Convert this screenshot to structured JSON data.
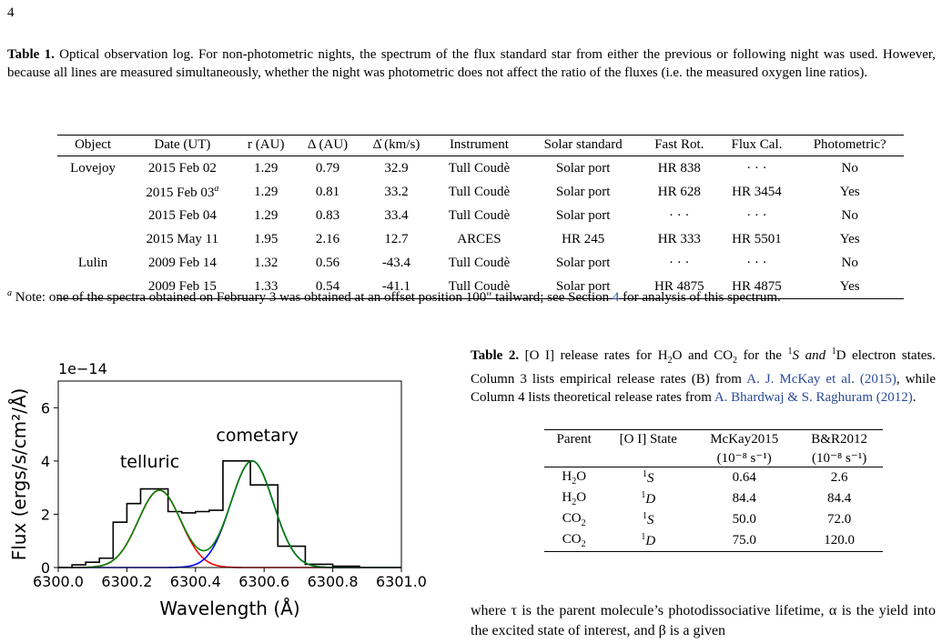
{
  "page_number": "4",
  "table1": {
    "label": "Table 1.",
    "caption": "Optical observation log. For non-photometric nights, the spectrum of the flux standard star from either the previous or following night was used. However, because all lines are measured simultaneously, whether the night was photometric does not affect the ratio of the fluxes (i.e. the measured oxygen line ratios).",
    "headers": [
      "Object",
      "Date (UT)",
      "r (AU)",
      "Δ (AU)",
      "Δ̇ (km/s)",
      "Instrument",
      "Solar standard",
      "Fast Rot.",
      "Flux Cal.",
      "Photometric?"
    ],
    "rows": [
      {
        "object": "Lovejoy",
        "date": "2015 Feb 02",
        "r": "1.29",
        "delta": "0.79",
        "deltadot": "32.9",
        "instrument": "Tull Coudè",
        "solar": "Solar port",
        "fast": "HR 838",
        "flux": "· · ·",
        "phot": "No"
      },
      {
        "object": "",
        "date": "2015 Feb 03",
        "note": "a",
        "r": "1.29",
        "delta": "0.81",
        "deltadot": "33.2",
        "instrument": "Tull Coudè",
        "solar": "Solar port",
        "fast": "HR 628",
        "flux": "HR 3454",
        "phot": "Yes"
      },
      {
        "object": "",
        "date": "2015 Feb 04",
        "r": "1.29",
        "delta": "0.83",
        "deltadot": "33.4",
        "instrument": "Tull Coudè",
        "solar": "Solar port",
        "fast": "· · ·",
        "flux": "· · ·",
        "phot": "No"
      },
      {
        "object": "",
        "date": "2015 May 11",
        "r": "1.95",
        "delta": "2.16",
        "deltadot": "12.7",
        "instrument": "ARCES",
        "solar": "HR 245",
        "fast": "HR 333",
        "flux": "HR 5501",
        "phot": "Yes"
      },
      {
        "object": "Lulin",
        "date": "2009 Feb 14",
        "r": "1.32",
        "delta": "0.56",
        "deltadot": "-43.4",
        "instrument": "Tull Coudè",
        "solar": "Solar port",
        "fast": "· · ·",
        "flux": "· · ·",
        "phot": "No"
      },
      {
        "object": "",
        "date": "2009 Feb 15",
        "r": "1.33",
        "delta": "0.54",
        "deltadot": "-41.1",
        "instrument": "Tull Coudè",
        "solar": "Solar port",
        "fast": "HR 4875",
        "flux": "HR 4875",
        "phot": "Yes"
      }
    ],
    "footnote_marker": "a",
    "footnote_before": " Note: one of the spectra obtained on February 3 was obtained at an offset position 100\" tailward; see Section ",
    "footnote_link": "4",
    "footnote_after": " for analysis of this spectrum."
  },
  "table2": {
    "label": "Table 2.",
    "caption_parts": {
      "a": " [O I] release rates for H",
      "b": "O and CO",
      "c": " for the ",
      "d": "S and ",
      "e": "D electron states. Column 3 lists empirical release rates (B) from ",
      "link1": "A. J. McKay et al. (2015)",
      "f": ", while Column 4 lists theoretical release rates from ",
      "link2": "A. Bhardwaj & S. Raghuram (2012)",
      "g": "."
    },
    "headers": [
      "Parent",
      "[O I] State",
      "McKay2015",
      "B&R2012"
    ],
    "units": [
      "",
      "",
      "(10⁻⁸ s⁻¹)",
      "(10⁻⁸ s⁻¹)"
    ],
    "rows": [
      {
        "parent": "H",
        "parent_sub": "2",
        "parent_end": "O",
        "state_sup": "1",
        "state": "S",
        "mckay": "0.64",
        "br": "2.6"
      },
      {
        "parent": "H",
        "parent_sub": "2",
        "parent_end": "O",
        "state_sup": "1",
        "state": "D",
        "mckay": "84.4",
        "br": "84.4"
      },
      {
        "parent": "CO",
        "parent_sub": "2",
        "parent_end": "",
        "state_sup": "1",
        "state": "S",
        "mckay": "50.0",
        "br": "72.0"
      },
      {
        "parent": "CO",
        "parent_sub": "2",
        "parent_end": "",
        "state_sup": "1",
        "state": "D",
        "mckay": "75.0",
        "br": "120.0"
      }
    ]
  },
  "body_text": "where τ is the parent molecule’s photodissociative lifetime, α is the yield into the excited state of interest, and β is a given",
  "chart_data": {
    "type": "line",
    "title": "",
    "xlabel": "Wavelength (Å)",
    "ylabel": "Flux (ergs/s/cm²/Å)",
    "offset_label": "1e−14",
    "xlim": [
      6300.0,
      6301.0
    ],
    "ylim": [
      0,
      7
    ],
    "x_ticks": [
      "6300.0",
      "6300.2",
      "6300.4",
      "6300.6",
      "6300.8",
      "6301.0"
    ],
    "y_ticks": [
      "0",
      "2",
      "4",
      "6"
    ],
    "annotations": [
      "telluric",
      "cometary"
    ],
    "grid": false,
    "series": [
      {
        "kind": "step",
        "color": "#000000",
        "x": [
          6300.0,
          6300.04,
          6300.08,
          6300.12,
          6300.16,
          6300.2,
          6300.24,
          6300.28,
          6300.32,
          6300.36,
          6300.4,
          6300.44,
          6300.48,
          6300.52,
          6300.56,
          6300.6,
          6300.64,
          6300.68,
          6300.72,
          6300.76,
          6300.8,
          6300.84
        ],
        "y": [
          0.0,
          0.1,
          0.2,
          0.35,
          1.7,
          2.4,
          2.95,
          2.95,
          2.1,
          2.05,
          2.1,
          2.15,
          4.0,
          4.0,
          3.1,
          3.1,
          0.8,
          0.8,
          0.12,
          0.12,
          0.05,
          0.05
        ]
      },
      {
        "kind": "gaussian",
        "color": "#ff0000",
        "amp": 2.9,
        "center": 6300.295,
        "sigma": 0.062
      },
      {
        "kind": "gaussian",
        "color": "#0000ff",
        "amp": 4.0,
        "center": 6300.565,
        "sigma": 0.062
      },
      {
        "kind": "sum",
        "color": "#008000"
      }
    ]
  }
}
